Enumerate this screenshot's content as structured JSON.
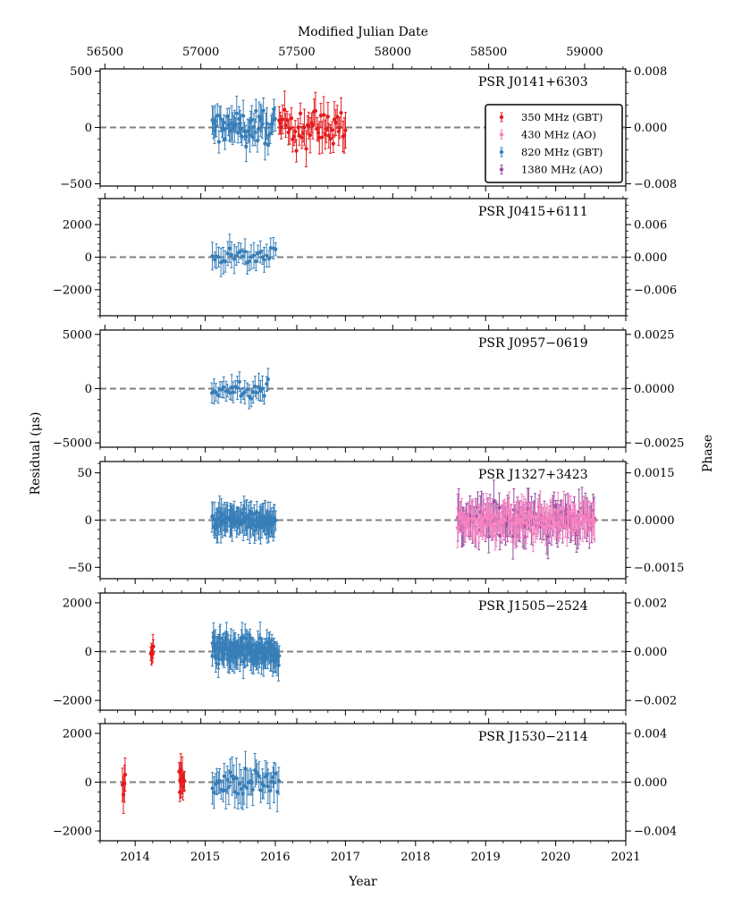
{
  "figure": {
    "top_axis_label": "Modified Julian Date",
    "bottom_axis_label": "Year",
    "left_axis_label": "Residual (μs)",
    "right_axis_label": "Phase",
    "top_ticks": [
      "56500",
      "57000",
      "57500",
      "58000",
      "58500",
      "59000"
    ],
    "bottom_ticks": [
      "2014",
      "2015",
      "2016",
      "2017",
      "2018",
      "2019",
      "2020",
      "2021"
    ]
  },
  "legend": [
    {
      "label": "350 MHz (GBT)",
      "color": "#e41a1c"
    },
    {
      "label": "430 MHz (AO)",
      "color": "#f781bf"
    },
    {
      "label": "820 MHz (GBT)",
      "color": "#377eb8"
    },
    {
      "label": "1380 MHz (AO)",
      "color": "#984ea3"
    }
  ],
  "chart_data": [
    {
      "type": "scatter",
      "title": "PSR J0141+6303",
      "xlabel": "Year",
      "ylabel": "Residual (μs)",
      "xlim": [
        2013.5,
        2021.0
      ],
      "ylim": [
        -520,
        520
      ],
      "y_ticks": [
        -500,
        0,
        500
      ],
      "y_tick_labels": [
        "−500",
        "0",
        "500"
      ],
      "phase_ticks": [
        0.008,
        0.0,
        -0.008
      ],
      "phase_tick_labels": [
        "0.008",
        "0.000",
        "−0.008"
      ],
      "series": [
        {
          "name": "820 MHz (GBT)",
          "ranges": [
            {
              "start": 2015.1,
              "end": 2016.0,
              "count": 60
            }
          ],
          "amplitude": 130,
          "error": 110
        },
        {
          "name": "350 MHz (GBT)",
          "ranges": [
            {
              "start": 2016.05,
              "end": 2017.0,
              "count": 50
            }
          ],
          "amplitude": 160,
          "error": 120
        }
      ]
    },
    {
      "type": "scatter",
      "title": "PSR J0415+6111",
      "xlabel": "Year",
      "ylabel": "Residual (μs)",
      "xlim": [
        2013.5,
        2021.0
      ],
      "ylim": [
        -3600,
        3600
      ],
      "y_ticks": [
        -2000,
        0,
        2000
      ],
      "y_tick_labels": [
        "−2000",
        "0",
        "2000"
      ],
      "phase_ticks": [
        0.006,
        0.0,
        -0.006
      ],
      "phase_tick_labels": [
        "0.006",
        "0.000",
        "−0.006"
      ],
      "series": [
        {
          "name": "820 MHz (GBT)",
          "ranges": [
            {
              "start": 2015.1,
              "end": 2016.0,
              "count": 30
            }
          ],
          "amplitude": 500,
          "error": 650
        }
      ]
    },
    {
      "type": "scatter",
      "title": "PSR J0957−0619",
      "xlabel": "Year",
      "ylabel": "Residual (μs)",
      "xlim": [
        2013.5,
        2021.0
      ],
      "ylim": [
        -5400,
        5400
      ],
      "y_ticks": [
        -5000,
        0,
        5000
      ],
      "y_tick_labels": [
        "−5000",
        "0",
        "5000"
      ],
      "phase_ticks": [
        0.0025,
        0.0,
        -0.0025
      ],
      "phase_tick_labels": [
        "0.0025",
        "0.0000",
        "−0.0025"
      ],
      "series": [
        {
          "name": "820 MHz (GBT)",
          "ranges": [
            {
              "start": 2015.1,
              "end": 2015.9,
              "count": 30
            }
          ],
          "amplitude": 700,
          "error": 900
        }
      ]
    },
    {
      "type": "scatter",
      "title": "PSR J1327+3423",
      "xlabel": "Year",
      "ylabel": "Residual (μs)",
      "xlim": [
        2013.5,
        2021.0
      ],
      "ylim": [
        -62,
        62
      ],
      "y_ticks": [
        -50,
        0,
        50
      ],
      "y_tick_labels": [
        "−50",
        "0",
        "50"
      ],
      "phase_ticks": [
        0.0015,
        0.0,
        -0.0015
      ],
      "phase_tick_labels": [
        "0.0015",
        "0.0000",
        "−0.0015"
      ],
      "series": [
        {
          "name": "820 MHz (GBT)",
          "ranges": [
            {
              "start": 2015.1,
              "end": 2016.0,
              "count": 90
            }
          ],
          "amplitude": 8,
          "error": 14
        },
        {
          "name": "1380 MHz (AO)",
          "ranges": [
            {
              "start": 2018.6,
              "end": 2020.55,
              "count": 110
            }
          ],
          "amplitude": 14,
          "error": 18
        },
        {
          "name": "430 MHz (AO)",
          "ranges": [
            {
              "start": 2018.6,
              "end": 2020.55,
              "count": 110
            }
          ],
          "amplitude": 10,
          "error": 16
        }
      ]
    },
    {
      "type": "scatter",
      "title": "PSR J1505−2524",
      "xlabel": "Year",
      "ylabel": "Residual (μs)",
      "xlim": [
        2013.5,
        2021.0
      ],
      "ylim": [
        -2400,
        2400
      ],
      "y_ticks": [
        -2000,
        0,
        2000
      ],
      "y_tick_labels": [
        "−2000",
        "0",
        "2000"
      ],
      "phase_ticks": [
        0.002,
        0.0,
        -0.002
      ],
      "phase_tick_labels": [
        "0.002",
        "0.000",
        "−0.002"
      ],
      "series": [
        {
          "name": "350 MHz (GBT)",
          "ranges": [
            {
              "start": 2014.22,
              "end": 2014.26,
              "count": 6
            }
          ],
          "amplitude": 250,
          "error": 350
        },
        {
          "name": "820 MHz (GBT)",
          "ranges": [
            {
              "start": 2015.1,
              "end": 2016.05,
              "count": 130
            }
          ],
          "amplitude": 450,
          "error": 500
        }
      ]
    },
    {
      "type": "scatter",
      "title": "PSR J1530−2114",
      "xlabel": "Year",
      "ylabel": "Residual (μs)",
      "xlim": [
        2013.5,
        2021.0
      ],
      "ylim": [
        -2400,
        2400
      ],
      "y_ticks": [
        -2000,
        0,
        2000
      ],
      "y_tick_labels": [
        "−2000",
        "0",
        "2000"
      ],
      "phase_ticks": [
        0.004,
        0.0,
        -0.004
      ],
      "phase_tick_labels": [
        "0.004",
        "0.000",
        "−0.004"
      ],
      "series": [
        {
          "name": "350 MHz (GBT)",
          "ranges": [
            {
              "start": 2013.82,
              "end": 2013.86,
              "count": 4
            },
            {
              "start": 2014.63,
              "end": 2014.7,
              "count": 10
            }
          ],
          "amplitude": 500,
          "error": 550
        },
        {
          "name": "820 MHz (GBT)",
          "ranges": [
            {
              "start": 2015.1,
              "end": 2016.05,
              "count": 45
            }
          ],
          "amplitude": 450,
          "error": 600
        }
      ]
    }
  ]
}
